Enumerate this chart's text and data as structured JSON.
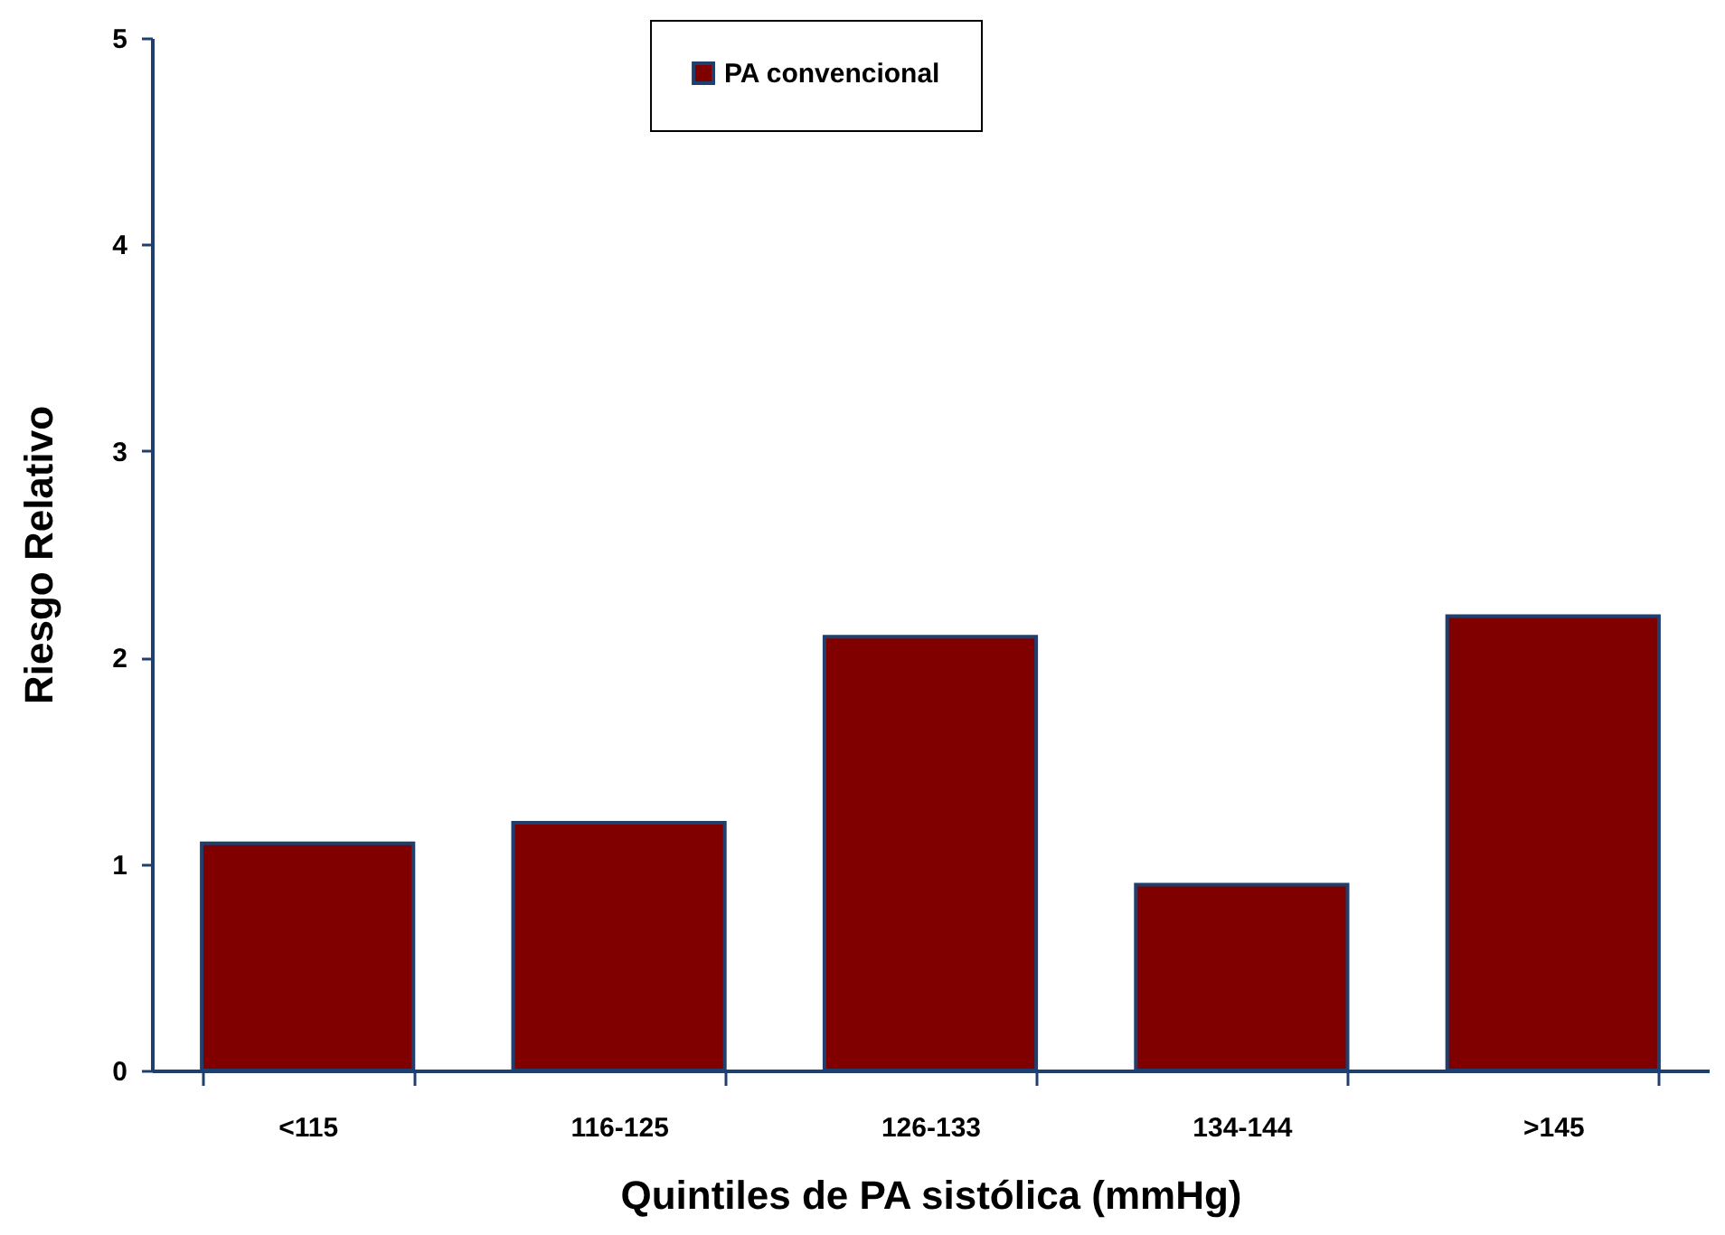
{
  "chart_data": {
    "type": "bar",
    "xlabel": "Quintiles de PA sistólica (mmHg)",
    "ylabel": "Riesgo Relativo",
    "categories": [
      "<115",
      "116-125",
      "126-133",
      "134-144",
      ">145"
    ],
    "series": [
      {
        "name": "PA convencional",
        "color": "#800000",
        "values": [
          1.1,
          1.2,
          2.1,
          0.9,
          2.2
        ]
      }
    ],
    "ylim": [
      0,
      5
    ],
    "yticks": [
      0,
      1,
      2,
      3,
      4,
      5
    ],
    "grid": false,
    "legend": "top"
  }
}
